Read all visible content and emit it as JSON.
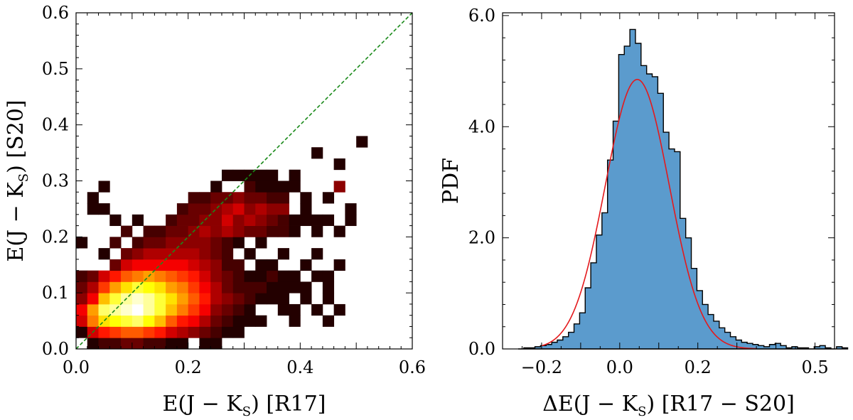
{
  "chart_data": [
    {
      "type": "heatmap",
      "title": "",
      "xlabel_main": "E(J − K",
      "xlabel_sub": "S",
      "xlabel_tail": ") [R17]",
      "ylabel_main": "E(J − K",
      "ylabel_sub": "S",
      "ylabel_tail": ") [S20]",
      "xlim": [
        0,
        0.6
      ],
      "ylim": [
        0,
        0.6
      ],
      "xticks": [
        0.0,
        0.2,
        0.4,
        0.6
      ],
      "xtick_labels": [
        "0.0",
        "0.2",
        "0.4",
        "0.6"
      ],
      "yticks": [
        0.0,
        0.1,
        0.2,
        0.3,
        0.4,
        0.5,
        0.6
      ],
      "ytick_labels": [
        "0.0",
        "0.1",
        "0.2",
        "0.3",
        "0.4",
        "0.5",
        "0.6"
      ],
      "bin_width": 0.02,
      "diagonal": {
        "from": [
          0,
          0
        ],
        "to": [
          0.6,
          0.6
        ],
        "color": "#1a8a1a",
        "style": "dashed"
      },
      "colormap": "hot",
      "cells": [
        [
          0.0,
          0.02,
          0.05
        ],
        [
          0.0,
          0.04,
          0.3
        ],
        [
          0.0,
          0.06,
          0.35
        ],
        [
          0.0,
          0.08,
          0.2
        ],
        [
          0.0,
          0.1,
          0.15
        ],
        [
          0.0,
          0.12,
          0.1
        ],
        [
          0.0,
          0.18,
          0.05
        ],
        [
          0.02,
          0.0,
          0.05
        ],
        [
          0.02,
          0.02,
          0.3
        ],
        [
          0.02,
          0.04,
          0.55
        ],
        [
          0.02,
          0.06,
          0.6
        ],
        [
          0.02,
          0.08,
          0.35
        ],
        [
          0.02,
          0.1,
          0.25
        ],
        [
          0.02,
          0.12,
          0.15
        ],
        [
          0.02,
          0.24,
          0.05
        ],
        [
          0.02,
          0.26,
          0.05
        ],
        [
          0.04,
          0.0,
          0.1
        ],
        [
          0.04,
          0.02,
          0.4
        ],
        [
          0.04,
          0.04,
          0.7
        ],
        [
          0.04,
          0.06,
          0.85
        ],
        [
          0.04,
          0.08,
          0.65
        ],
        [
          0.04,
          0.1,
          0.45
        ],
        [
          0.04,
          0.12,
          0.3
        ],
        [
          0.04,
          0.16,
          0.05
        ],
        [
          0.04,
          0.24,
          0.05
        ],
        [
          0.04,
          0.28,
          0.05
        ],
        [
          0.06,
          0.0,
          0.1
        ],
        [
          0.06,
          0.02,
          0.45
        ],
        [
          0.06,
          0.04,
          0.75
        ],
        [
          0.06,
          0.06,
          0.9
        ],
        [
          0.06,
          0.08,
          0.8
        ],
        [
          0.06,
          0.1,
          0.6
        ],
        [
          0.06,
          0.12,
          0.4
        ],
        [
          0.06,
          0.14,
          0.15
        ],
        [
          0.06,
          0.18,
          0.1
        ],
        [
          0.06,
          0.22,
          0.05
        ],
        [
          0.08,
          0.0,
          0.15
        ],
        [
          0.08,
          0.02,
          0.5
        ],
        [
          0.08,
          0.04,
          0.8
        ],
        [
          0.08,
          0.06,
          0.95
        ],
        [
          0.08,
          0.08,
          0.9
        ],
        [
          0.08,
          0.1,
          0.7
        ],
        [
          0.08,
          0.12,
          0.5
        ],
        [
          0.08,
          0.14,
          0.3
        ],
        [
          0.08,
          0.16,
          0.15
        ],
        [
          0.08,
          0.2,
          0.1
        ],
        [
          0.1,
          0.0,
          0.15
        ],
        [
          0.1,
          0.02,
          0.5
        ],
        [
          0.1,
          0.04,
          0.85
        ],
        [
          0.1,
          0.06,
          1.0
        ],
        [
          0.1,
          0.08,
          0.95
        ],
        [
          0.1,
          0.1,
          0.8
        ],
        [
          0.1,
          0.12,
          0.55
        ],
        [
          0.1,
          0.14,
          0.35
        ],
        [
          0.1,
          0.16,
          0.2
        ],
        [
          0.1,
          0.18,
          0.1
        ],
        [
          0.1,
          0.22,
          0.05
        ],
        [
          0.12,
          0.0,
          0.1
        ],
        [
          0.12,
          0.02,
          0.45
        ],
        [
          0.12,
          0.04,
          0.75
        ],
        [
          0.12,
          0.06,
          0.9
        ],
        [
          0.12,
          0.08,
          0.9
        ],
        [
          0.12,
          0.1,
          0.75
        ],
        [
          0.12,
          0.12,
          0.6
        ],
        [
          0.12,
          0.14,
          0.35
        ],
        [
          0.12,
          0.16,
          0.25
        ],
        [
          0.12,
          0.18,
          0.15
        ],
        [
          0.12,
          0.2,
          0.1
        ],
        [
          0.14,
          0.0,
          0.1
        ],
        [
          0.14,
          0.02,
          0.4
        ],
        [
          0.14,
          0.04,
          0.65
        ],
        [
          0.14,
          0.06,
          0.8
        ],
        [
          0.14,
          0.08,
          0.8
        ],
        [
          0.14,
          0.1,
          0.7
        ],
        [
          0.14,
          0.12,
          0.55
        ],
        [
          0.14,
          0.14,
          0.35
        ],
        [
          0.14,
          0.16,
          0.25
        ],
        [
          0.14,
          0.18,
          0.15
        ],
        [
          0.14,
          0.2,
          0.1
        ],
        [
          0.16,
          0.0,
          0.05
        ],
        [
          0.16,
          0.02,
          0.3
        ],
        [
          0.16,
          0.04,
          0.5
        ],
        [
          0.16,
          0.06,
          0.65
        ],
        [
          0.16,
          0.08,
          0.7
        ],
        [
          0.16,
          0.1,
          0.6
        ],
        [
          0.16,
          0.12,
          0.5
        ],
        [
          0.16,
          0.14,
          0.35
        ],
        [
          0.16,
          0.16,
          0.25
        ],
        [
          0.16,
          0.18,
          0.2
        ],
        [
          0.16,
          0.2,
          0.15
        ],
        [
          0.16,
          0.22,
          0.1
        ],
        [
          0.18,
          0.0,
          0.05
        ],
        [
          0.18,
          0.02,
          0.25
        ],
        [
          0.18,
          0.04,
          0.4
        ],
        [
          0.18,
          0.06,
          0.55
        ],
        [
          0.18,
          0.08,
          0.6
        ],
        [
          0.18,
          0.1,
          0.55
        ],
        [
          0.18,
          0.12,
          0.45
        ],
        [
          0.18,
          0.14,
          0.35
        ],
        [
          0.18,
          0.16,
          0.25
        ],
        [
          0.18,
          0.18,
          0.2
        ],
        [
          0.18,
          0.2,
          0.15
        ],
        [
          0.18,
          0.22,
          0.15
        ],
        [
          0.18,
          0.24,
          0.1
        ],
        [
          0.2,
          0.02,
          0.2
        ],
        [
          0.2,
          0.04,
          0.35
        ],
        [
          0.2,
          0.06,
          0.45
        ],
        [
          0.2,
          0.08,
          0.5
        ],
        [
          0.2,
          0.1,
          0.45
        ],
        [
          0.2,
          0.12,
          0.4
        ],
        [
          0.2,
          0.14,
          0.3
        ],
        [
          0.2,
          0.16,
          0.25
        ],
        [
          0.2,
          0.18,
          0.2
        ],
        [
          0.2,
          0.2,
          0.2
        ],
        [
          0.2,
          0.22,
          0.15
        ],
        [
          0.2,
          0.24,
          0.15
        ],
        [
          0.2,
          0.26,
          0.1
        ],
        [
          0.22,
          0.0,
          0.05
        ],
        [
          0.22,
          0.02,
          0.15
        ],
        [
          0.22,
          0.04,
          0.25
        ],
        [
          0.22,
          0.06,
          0.35
        ],
        [
          0.22,
          0.08,
          0.4
        ],
        [
          0.22,
          0.1,
          0.35
        ],
        [
          0.22,
          0.12,
          0.3
        ],
        [
          0.22,
          0.14,
          0.25
        ],
        [
          0.22,
          0.16,
          0.2
        ],
        [
          0.22,
          0.18,
          0.2
        ],
        [
          0.22,
          0.2,
          0.25
        ],
        [
          0.22,
          0.22,
          0.2
        ],
        [
          0.22,
          0.24,
          0.15
        ],
        [
          0.22,
          0.26,
          0.1
        ],
        [
          0.24,
          0.0,
          0.05
        ],
        [
          0.24,
          0.02,
          0.1
        ],
        [
          0.24,
          0.04,
          0.15
        ],
        [
          0.24,
          0.06,
          0.2
        ],
        [
          0.24,
          0.08,
          0.25
        ],
        [
          0.24,
          0.1,
          0.25
        ],
        [
          0.24,
          0.12,
          0.2
        ],
        [
          0.24,
          0.14,
          0.2
        ],
        [
          0.24,
          0.16,
          0.15
        ],
        [
          0.24,
          0.18,
          0.15
        ],
        [
          0.24,
          0.2,
          0.2
        ],
        [
          0.24,
          0.22,
          0.2
        ],
        [
          0.24,
          0.24,
          0.2
        ],
        [
          0.24,
          0.26,
          0.15
        ],
        [
          0.24,
          0.28,
          0.05
        ],
        [
          0.26,
          0.02,
          0.05
        ],
        [
          0.26,
          0.04,
          0.1
        ],
        [
          0.26,
          0.06,
          0.15
        ],
        [
          0.26,
          0.08,
          0.2
        ],
        [
          0.26,
          0.1,
          0.15
        ],
        [
          0.26,
          0.12,
          0.15
        ],
        [
          0.26,
          0.14,
          0.1
        ],
        [
          0.26,
          0.16,
          0.1
        ],
        [
          0.26,
          0.18,
          0.1
        ],
        [
          0.26,
          0.2,
          0.25
        ],
        [
          0.26,
          0.22,
          0.3
        ],
        [
          0.26,
          0.24,
          0.25
        ],
        [
          0.26,
          0.26,
          0.15
        ],
        [
          0.26,
          0.3,
          0.05
        ],
        [
          0.28,
          0.02,
          0.05
        ],
        [
          0.28,
          0.04,
          0.05
        ],
        [
          0.28,
          0.06,
          0.1
        ],
        [
          0.28,
          0.08,
          0.15
        ],
        [
          0.28,
          0.1,
          0.1
        ],
        [
          0.28,
          0.12,
          0.1
        ],
        [
          0.28,
          0.14,
          0.1
        ],
        [
          0.28,
          0.18,
          0.05
        ],
        [
          0.28,
          0.2,
          0.2
        ],
        [
          0.28,
          0.22,
          0.2
        ],
        [
          0.28,
          0.24,
          0.3
        ],
        [
          0.28,
          0.26,
          0.2
        ],
        [
          0.28,
          0.3,
          0.05
        ],
        [
          0.3,
          0.04,
          0.05
        ],
        [
          0.3,
          0.06,
          0.05
        ],
        [
          0.3,
          0.08,
          0.1
        ],
        [
          0.3,
          0.1,
          0.1
        ],
        [
          0.3,
          0.12,
          0.05
        ],
        [
          0.3,
          0.16,
          0.05
        ],
        [
          0.3,
          0.2,
          0.15
        ],
        [
          0.3,
          0.22,
          0.25
        ],
        [
          0.3,
          0.24,
          0.2
        ],
        [
          0.3,
          0.26,
          0.15
        ],
        [
          0.3,
          0.28,
          0.1
        ],
        [
          0.3,
          0.3,
          0.05
        ],
        [
          0.32,
          0.04,
          0.05
        ],
        [
          0.32,
          0.08,
          0.05
        ],
        [
          0.32,
          0.1,
          0.1
        ],
        [
          0.32,
          0.12,
          0.05
        ],
        [
          0.32,
          0.14,
          0.05
        ],
        [
          0.32,
          0.18,
          0.05
        ],
        [
          0.32,
          0.2,
          0.15
        ],
        [
          0.32,
          0.22,
          0.2
        ],
        [
          0.32,
          0.24,
          0.25
        ],
        [
          0.32,
          0.26,
          0.15
        ],
        [
          0.32,
          0.28,
          0.05
        ],
        [
          0.32,
          0.3,
          0.05
        ],
        [
          0.34,
          0.08,
          0.05
        ],
        [
          0.34,
          0.1,
          0.05
        ],
        [
          0.34,
          0.12,
          0.1
        ],
        [
          0.34,
          0.14,
          0.05
        ],
        [
          0.34,
          0.2,
          0.1
        ],
        [
          0.34,
          0.22,
          0.15
        ],
        [
          0.34,
          0.24,
          0.2
        ],
        [
          0.34,
          0.26,
          0.1
        ],
        [
          0.34,
          0.28,
          0.05
        ],
        [
          0.34,
          0.3,
          0.05
        ],
        [
          0.36,
          0.06,
          0.05
        ],
        [
          0.36,
          0.08,
          0.05
        ],
        [
          0.36,
          0.1,
          0.05
        ],
        [
          0.36,
          0.12,
          0.05
        ],
        [
          0.36,
          0.16,
          0.05
        ],
        [
          0.36,
          0.2,
          0.1
        ],
        [
          0.36,
          0.22,
          0.1
        ],
        [
          0.36,
          0.24,
          0.2
        ],
        [
          0.36,
          0.26,
          0.1
        ],
        [
          0.36,
          0.28,
          0.05
        ],
        [
          0.38,
          0.04,
          0.05
        ],
        [
          0.38,
          0.06,
          0.05
        ],
        [
          0.38,
          0.1,
          0.05
        ],
        [
          0.38,
          0.12,
          0.05
        ],
        [
          0.38,
          0.2,
          0.05
        ],
        [
          0.38,
          0.22,
          0.05
        ],
        [
          0.38,
          0.28,
          0.05
        ],
        [
          0.38,
          0.3,
          0.05
        ],
        [
          0.4,
          0.08,
          0.05
        ],
        [
          0.4,
          0.1,
          0.05
        ],
        [
          0.4,
          0.14,
          0.05
        ],
        [
          0.4,
          0.22,
          0.05
        ],
        [
          0.4,
          0.24,
          0.05
        ],
        [
          0.4,
          0.26,
          0.05
        ],
        [
          0.42,
          0.06,
          0.05
        ],
        [
          0.42,
          0.12,
          0.05
        ],
        [
          0.42,
          0.16,
          0.05
        ],
        [
          0.42,
          0.2,
          0.05
        ],
        [
          0.42,
          0.22,
          0.05
        ],
        [
          0.42,
          0.34,
          0.05
        ],
        [
          0.44,
          0.04,
          0.05
        ],
        [
          0.44,
          0.08,
          0.05
        ],
        [
          0.44,
          0.1,
          0.05
        ],
        [
          0.44,
          0.12,
          0.05
        ],
        [
          0.44,
          0.22,
          0.05
        ],
        [
          0.44,
          0.26,
          0.05
        ],
        [
          0.46,
          0.06,
          0.05
        ],
        [
          0.46,
          0.14,
          0.05
        ],
        [
          0.46,
          0.2,
          0.05
        ],
        [
          0.46,
          0.28,
          0.2
        ],
        [
          0.46,
          0.32,
          0.05
        ],
        [
          0.48,
          0.22,
          0.05
        ],
        [
          0.48,
          0.24,
          0.05
        ],
        [
          0.5,
          0.36,
          0.05
        ]
      ]
    },
    {
      "type": "histogram",
      "title": "",
      "xlabel_main": "ΔE(J − K",
      "xlabel_sub": "S",
      "xlabel_tail": ") [R17 − S20]",
      "ylabel": "PDF",
      "xlim": [
        -0.3,
        0.55
      ],
      "ylim": [
        0,
        6.05
      ],
      "xticks": [
        -0.2,
        0.0,
        0.2,
        0.5
      ],
      "xtick_labels": [
        "−0.2",
        "0.0",
        "0.2",
        "0.5"
      ],
      "yticks": [
        0,
        2,
        4,
        6
      ],
      "ytick_labels": [
        "0.0",
        "2.0",
        "4.0",
        "6.0"
      ],
      "bin_width": 0.0143,
      "bin_start": -0.26,
      "bar_color": "#5b9bcd",
      "pdf_values": [
        0.0,
        0.02,
        0.02,
        0.04,
        0.06,
        0.08,
        0.12,
        0.16,
        0.22,
        0.3,
        0.45,
        0.65,
        1.1,
        1.55,
        2.05,
        2.45,
        3.4,
        4.1,
        5.3,
        5.45,
        5.75,
        5.5,
        5.1,
        4.95,
        4.9,
        4.6,
        3.9,
        3.6,
        3.55,
        2.35,
        2.0,
        1.45,
        1.05,
        0.8,
        0.62,
        0.5,
        0.38,
        0.3,
        0.22,
        0.16,
        0.12,
        0.1,
        0.08,
        0.06,
        0.04,
        0.08,
        0.1,
        0.06,
        0.02,
        0.04,
        0.02,
        0.02,
        0.0,
        0.04,
        0.06,
        0.02,
        0.0,
        0.04,
        0.02
      ],
      "fit": {
        "type": "gaussian",
        "mu": 0.045,
        "sigma": 0.082,
        "amplitude": 4.85,
        "color": "#e4191c"
      }
    }
  ]
}
